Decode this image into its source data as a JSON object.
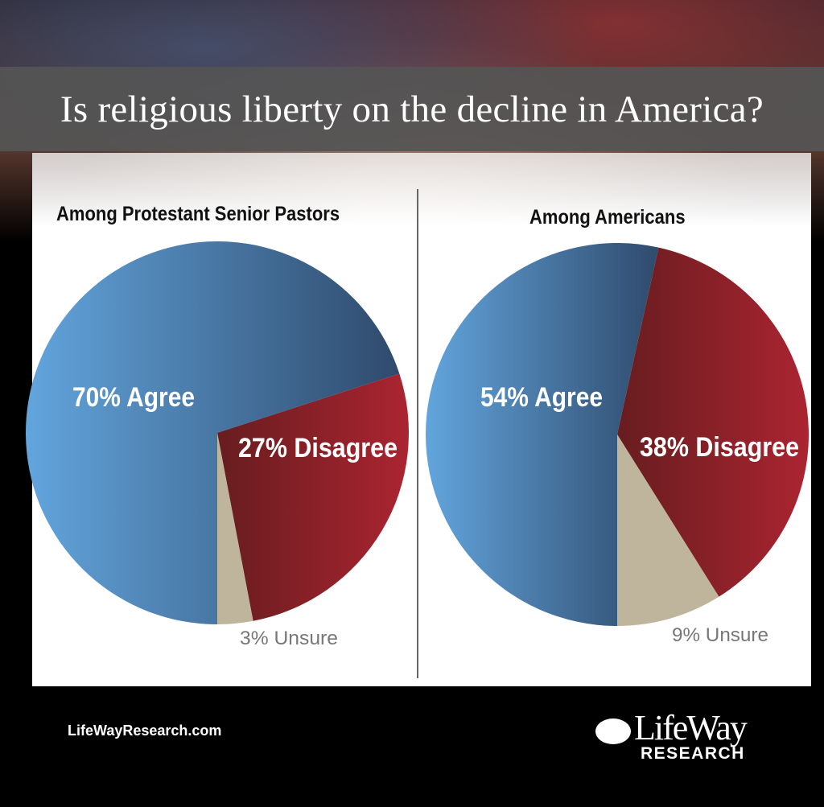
{
  "title": "Is religious liberty on the decline in America?",
  "footer": {
    "site": "LifeWayResearch.com",
    "logo_word": "LifeWay",
    "logo_sub": "RESEARCH"
  },
  "colors": {
    "agree_light": "#62a5dd",
    "agree_dark": "#2f4a6c",
    "disagree_dark": "#671d1f",
    "disagree_light": "#ab2431",
    "unsure": "#bfb59d"
  },
  "chart_data": [
    {
      "type": "pie",
      "title": "Among Protestant Senior Pastors",
      "slices": [
        {
          "name": "Agree",
          "value": 70,
          "label": "70% Agree"
        },
        {
          "name": "Disagree",
          "value": 27,
          "label": "27% Disagree"
        },
        {
          "name": "Unsure",
          "value": 3,
          "label": "3% Unsure"
        }
      ]
    },
    {
      "type": "pie",
      "title": "Among Americans",
      "slices": [
        {
          "name": "Agree",
          "value": 54,
          "label": "54% Agree"
        },
        {
          "name": "Disagree",
          "value": 38,
          "label": "38% Disagree"
        },
        {
          "name": "Unsure",
          "value": 9,
          "label": "9% Unsure"
        }
      ]
    }
  ]
}
